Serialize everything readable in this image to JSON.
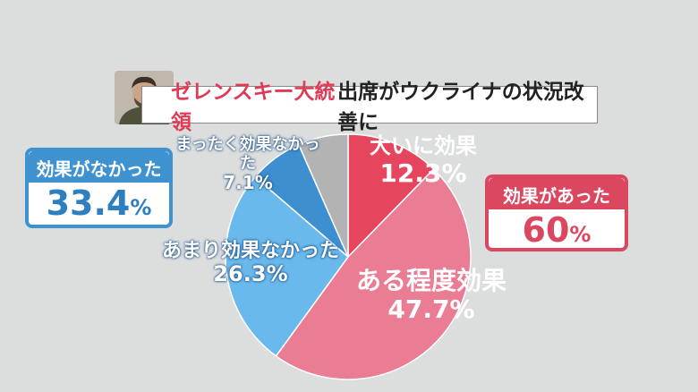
{
  "title": {
    "highlight": "ゼレンスキー大統領",
    "rest": "出席がウクライナの状況改善に"
  },
  "summary": {
    "no_effect": {
      "label": "効果がなかった",
      "value": "33.4",
      "unit": "%"
    },
    "effect": {
      "label": "効果があった",
      "value": "60",
      "unit": "%"
    }
  },
  "chart_data": {
    "type": "pie",
    "title": "ゼレンスキー大統領出席がウクライナの状況改善に",
    "slices": [
      {
        "label": "大いに効果",
        "value": 12.3,
        "value_text": "12.3%",
        "color": "#e6455e"
      },
      {
        "label": "ある程度効果",
        "value": 47.7,
        "value_text": "47.7%",
        "color": "#ea7c94"
      },
      {
        "label": "あまり効果なかった",
        "value": 26.3,
        "value_text": "26.3%",
        "color": "#6ab9ec"
      },
      {
        "label": "まったく効果なかった",
        "value": 7.1,
        "value_text": "7.1%",
        "color": "#3d8fd0"
      },
      {
        "label": "",
        "value": 6.6,
        "value_text": "",
        "color": "#b3b3b3"
      }
    ]
  },
  "colors": {
    "background": "#dcdddd",
    "effect": "#dc4760",
    "no_effect": "#3e92d0"
  }
}
